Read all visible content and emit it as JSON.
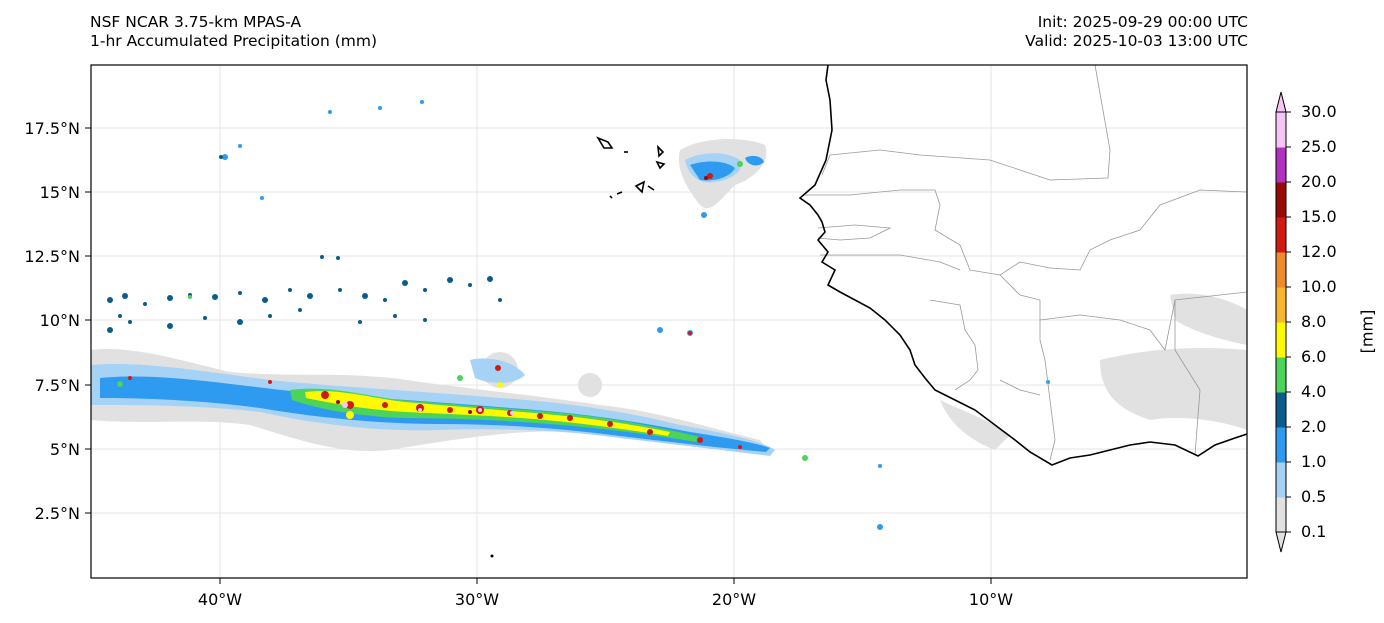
{
  "header": {
    "model": "NSF NCAR 3.75-km MPAS-A",
    "field": "1-hr Accumulated Precipitation (mm)",
    "init": "Init: 2025-09-29 00:00 UTC",
    "valid": "Valid: 2025-10-03 13:00 UTC"
  },
  "axes": {
    "lat_labels": [
      "17.5°N",
      "15°N",
      "12.5°N",
      "10°N",
      "7.5°N",
      "5°N",
      "2.5°N"
    ],
    "lon_labels": [
      "40°W",
      "30°W",
      "20°W",
      "10°W"
    ]
  },
  "colorbar": {
    "unit": "[mm]",
    "levels": [
      "0.1",
      "0.5",
      "1.0",
      "2.0",
      "4.0",
      "6.0",
      "8.0",
      "10.0",
      "12.0",
      "15.0",
      "20.0",
      "25.0",
      "30.0"
    ],
    "colors": [
      "#e1e1e1",
      "#a6d3f5",
      "#2e9bf0",
      "#0a5c8c",
      "#4bd35a",
      "#fffa00",
      "#f7b62e",
      "#ee8b2c",
      "#d11a12",
      "#9a0a04",
      "#b231c0",
      "#f7c5f5"
    ]
  },
  "map": {
    "extent": {
      "lon_min": -45,
      "lon_max": 0,
      "lat_min": 0,
      "lat_max": 20
    },
    "grid": true
  }
}
